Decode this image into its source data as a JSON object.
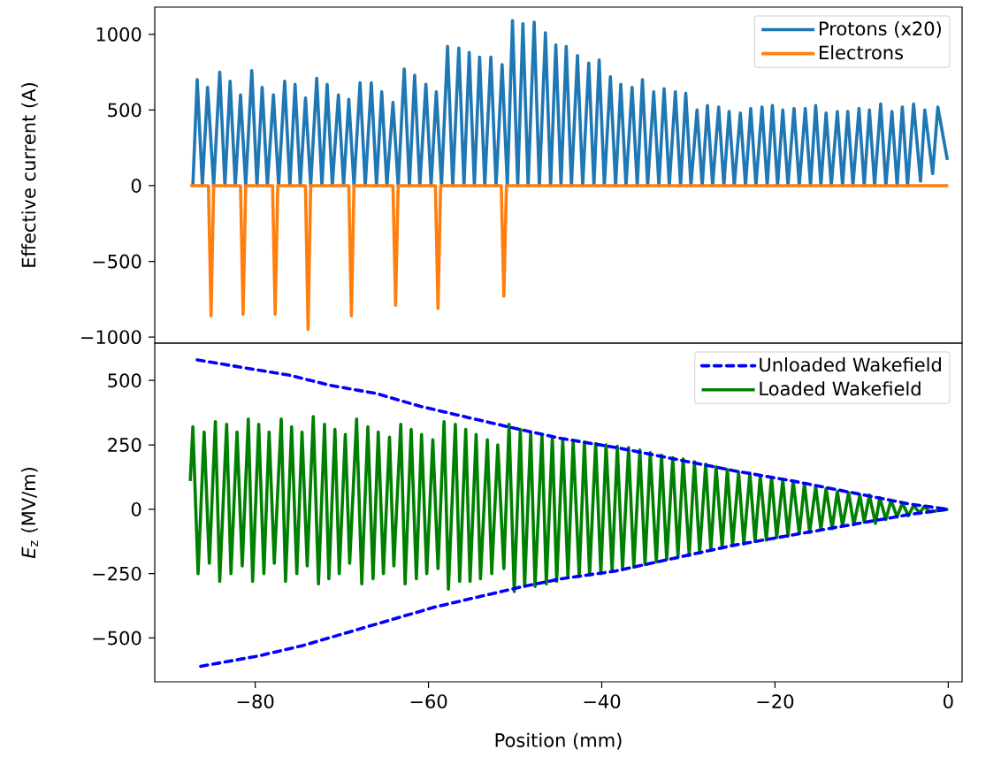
{
  "chart_data": [
    {
      "type": "line",
      "ylabel": "Effective current (A)",
      "xlim": [
        -91.6,
        1.6
      ],
      "ylim": [
        -1040,
        1180
      ],
      "tick_labels": "y",
      "legend": "top right",
      "yticks": [
        {
          "value": -1000,
          "label": "−1000"
        },
        {
          "value": -500,
          "label": "−500"
        },
        0,
        500,
        1000
      ],
      "series": [
        {
          "name": "Protons (x20)",
          "color": "#1f77b4",
          "x": [
            -87.2,
            -86.7,
            -86.1,
            -85.5,
            -84.8,
            -84.1,
            -83.5,
            -82.9,
            -82.3,
            -81.7,
            -81.1,
            -80.4,
            -79.8,
            -79.2,
            -78.6,
            -77.9,
            -77.3,
            -76.6,
            -76.0,
            -75.4,
            -74.8,
            -74.2,
            -73.6,
            -72.9,
            -72.3,
            -71.7,
            -71.1,
            -70.4,
            -69.8,
            -69.2,
            -68.6,
            -67.9,
            -67.3,
            -66.6,
            -66.0,
            -65.4,
            -64.8,
            -64.1,
            -63.5,
            -62.8,
            -62.2,
            -61.6,
            -61.0,
            -60.3,
            -59.7,
            -59.1,
            -58.5,
            -57.8,
            -57.2,
            -56.5,
            -55.9,
            -55.3,
            -54.7,
            -54.1,
            -53.5,
            -52.8,
            -52.2,
            -51.5,
            -50.9,
            -50.3,
            -49.7,
            -49.1,
            -48.5,
            -47.8,
            -47.2,
            -46.5,
            -45.9,
            -45.3,
            -44.7,
            -44.1,
            -43.5,
            -42.8,
            -42.2,
            -41.5,
            -40.9,
            -40.3,
            -39.7,
            -39.0,
            -38.4,
            -37.8,
            -37.2,
            -36.5,
            -35.9,
            -35.3,
            -34.7,
            -34.0,
            -33.4,
            -32.8,
            -32.2,
            -31.5,
            -30.9,
            -30.3,
            -29.7,
            -29.0,
            -28.4,
            -27.8,
            -27.2,
            -26.5,
            -25.9,
            -25.3,
            -24.7,
            -24.0,
            -23.4,
            -22.8,
            -22.2,
            -21.5,
            -20.9,
            -20.3,
            -19.7,
            -19.1,
            -18.5,
            -17.8,
            -17.2,
            -16.5,
            -15.9,
            -15.3,
            -14.7,
            -14.1,
            -13.5,
            -12.8,
            -12.2,
            -11.6,
            -11.0,
            -10.3,
            -9.7,
            -9.1,
            -8.5,
            -7.8,
            -7.2,
            -6.5,
            -5.9,
            -5.3,
            -4.7,
            -4.0,
            -3.2,
            -2.7,
            -1.8,
            -1.2,
            -0.1
          ],
          "values": [
            0,
            700,
            0,
            650,
            0,
            750,
            0,
            690,
            0,
            600,
            0,
            760,
            0,
            650,
            0,
            600,
            0,
            690,
            0,
            670,
            0,
            580,
            0,
            710,
            0,
            670,
            0,
            600,
            0,
            570,
            0,
            680,
            0,
            680,
            0,
            620,
            0,
            550,
            0,
            770,
            0,
            730,
            0,
            670,
            0,
            620,
            0,
            920,
            0,
            910,
            0,
            880,
            0,
            850,
            0,
            850,
            0,
            800,
            0,
            1090,
            0,
            1070,
            0,
            1080,
            0,
            1010,
            0,
            930,
            0,
            920,
            0,
            860,
            0,
            810,
            0,
            830,
            0,
            720,
            0,
            670,
            0,
            650,
            0,
            700,
            0,
            620,
            0,
            640,
            0,
            620,
            0,
            610,
            0,
            500,
            0,
            530,
            0,
            520,
            0,
            490,
            0,
            480,
            0,
            510,
            0,
            520,
            0,
            530,
            0,
            500,
            0,
            510,
            0,
            510,
            0,
            530,
            0,
            480,
            0,
            490,
            0,
            490,
            0,
            510,
            0,
            500,
            0,
            540,
            0,
            490,
            0,
            520,
            0,
            540,
            30,
            500,
            80,
            520,
            170
          ]
        },
        {
          "name": "Electrons",
          "color": "#ff7f0e",
          "x": [
            -87.5,
            -85.4,
            -85.1,
            -84.8,
            -81.7,
            -81.4,
            -81.1,
            -78.0,
            -77.7,
            -77.4,
            -74.2,
            -73.9,
            -73.6,
            -69.2,
            -68.9,
            -68.6,
            -64.1,
            -63.8,
            -63.5,
            -59.2,
            -58.9,
            -58.6,
            -51.6,
            -51.3,
            -51.0,
            0
          ],
          "values": [
            0,
            0,
            -860,
            0,
            0,
            -850,
            0,
            0,
            -850,
            0,
            0,
            -950,
            0,
            0,
            -860,
            0,
            0,
            -790,
            0,
            0,
            -810,
            0,
            0,
            -730,
            0,
            0
          ]
        }
      ]
    },
    {
      "type": "line",
      "xlabel": "Position (mm)",
      "ylabel": "*E*$_{z}$ (MV/m)",
      "xlim": [
        -91.6,
        1.6
      ],
      "ylim": [
        -670,
        645
      ],
      "legend": "top right",
      "xticks": [
        {
          "value": -80,
          "label": "−80"
        },
        {
          "value": -60,
          "label": "−60"
        },
        {
          "value": -40,
          "label": "−40"
        },
        {
          "value": -20,
          "label": "−20"
        },
        0
      ],
      "yticks": [
        {
          "value": -500,
          "label": "−500"
        },
        {
          "value": -250,
          "label": "−250"
        },
        0,
        250,
        500
      ],
      "series": [
        {
          "name": "Unloaded Wakefield",
          "color": "#0000ff",
          "line_style": "dashed",
          "x": [
            -86.7,
            -81.4,
            -76.0,
            -71.2,
            -66.1,
            -61.0,
            -55.9,
            -50.8,
            -44.7,
            -38.4,
            -31.6,
            -24.8,
            -18.0,
            -11.2,
            -4.4,
            0
          ],
          "values": [
            580,
            550,
            520,
            480,
            450,
            400,
            360,
            320,
            275,
            240,
            195,
            150,
            110,
            65,
            20,
            0
          ]
        },
        {
          "color": "#0000ff",
          "line_style": "dashed",
          "x": [
            -86.3,
            -79.7,
            -74.6,
            -69.5,
            -64.4,
            -59.3,
            -54.2,
            -49.1,
            -44.7,
            -38.4,
            -31.6,
            -24.8,
            -18.0,
            -11.2,
            -4.4,
            0
          ],
          "values": [
            -610,
            -570,
            -530,
            -480,
            -430,
            -380,
            -340,
            -300,
            -270,
            -240,
            -190,
            -140,
            -100,
            -60,
            -20,
            0
          ]
        },
        {
          "name": "Loaded Wakefield",
          "color": "#008000",
          "line_style": "solid",
          "x": [
            -87.5,
            -87.2,
            -86.6,
            -85.9,
            -85.3,
            -84.6,
            -84.1,
            -83.3,
            -82.8,
            -82.1,
            -81.5,
            -80.8,
            -80.3,
            -79.6,
            -79.0,
            -78.4,
            -77.8,
            -77.0,
            -76.5,
            -75.8,
            -75.2,
            -74.6,
            -74.0,
            -73.3,
            -72.7,
            -72.0,
            -71.5,
            -70.8,
            -70.3,
            -69.6,
            -69.1,
            -68.3,
            -67.7,
            -67.0,
            -66.4,
            -65.8,
            -65.2,
            -64.5,
            -64.0,
            -63.2,
            -62.7,
            -62.0,
            -61.4,
            -60.8,
            -60.2,
            -59.5,
            -58.9,
            -58.2,
            -57.7,
            -56.9,
            -56.4,
            -55.7,
            -55.2,
            -54.5,
            -54.0,
            -53.2,
            -52.7,
            -52.0,
            -51.3,
            -50.7,
            -50.1,
            -49.4,
            -48.9,
            -48.2,
            -47.7,
            -46.9,
            -46.4,
            -45.7,
            -45.2,
            -44.5,
            -43.9,
            -43.3,
            -42.6,
            -42.0,
            -41.4,
            -40.7,
            -40.1,
            -39.5,
            -38.8,
            -38.2,
            -37.6,
            -36.9,
            -36.3,
            -35.6,
            -35.0,
            -34.4,
            -33.7,
            -33.1,
            -32.5,
            -31.8,
            -31.2,
            -30.6,
            -29.9,
            -29.3,
            -28.7,
            -28.0,
            -27.4,
            -26.8,
            -26.1,
            -25.5,
            -24.9,
            -24.2,
            -23.6,
            -22.9,
            -22.3,
            -21.7,
            -21.0,
            -20.4,
            -19.8,
            -19.1,
            -18.5,
            -17.9,
            -17.2,
            -16.6,
            -16.0,
            -15.3,
            -14.7,
            -14.1,
            -13.4,
            -12.8,
            -12.2,
            -11.5,
            -10.9,
            -10.2,
            -9.7,
            -9.1,
            -8.4,
            -7.9,
            -7.2,
            -6.6,
            -5.9,
            -5.3,
            -4.6,
            -4.0,
            -3.3,
            -2.8,
            -2.1,
            0
          ],
          "values": [
            110,
            320,
            -250,
            300,
            -210,
            340,
            -280,
            330,
            -250,
            300,
            -220,
            350,
            -280,
            330,
            -250,
            300,
            -210,
            350,
            -280,
            320,
            -250,
            300,
            -220,
            360,
            -290,
            330,
            -270,
            310,
            -250,
            290,
            -210,
            350,
            -290,
            320,
            -270,
            300,
            -250,
            280,
            -220,
            330,
            -290,
            310,
            -270,
            290,
            -250,
            270,
            -230,
            340,
            -310,
            330,
            -280,
            310,
            -280,
            290,
            -270,
            270,
            -250,
            250,
            -230,
            330,
            -320,
            310,
            -300,
            300,
            -300,
            290,
            -290,
            280,
            -280,
            270,
            -265,
            265,
            -260,
            260,
            -255,
            255,
            -250,
            250,
            -240,
            245,
            -235,
            240,
            -225,
            230,
            -215,
            220,
            -205,
            210,
            -195,
            200,
            -185,
            195,
            -180,
            185,
            -170,
            175,
            -160,
            165,
            -150,
            155,
            -140,
            145,
            -135,
            140,
            -125,
            130,
            -120,
            125,
            -110,
            115,
            -105,
            110,
            -95,
            100,
            -90,
            90,
            -80,
            80,
            -75,
            70,
            -65,
            65,
            -60,
            55,
            -50,
            55,
            -55,
            45,
            -40,
            35,
            -30,
            25,
            -25,
            15,
            -15,
            10,
            -10,
            0
          ]
        }
      ]
    }
  ]
}
